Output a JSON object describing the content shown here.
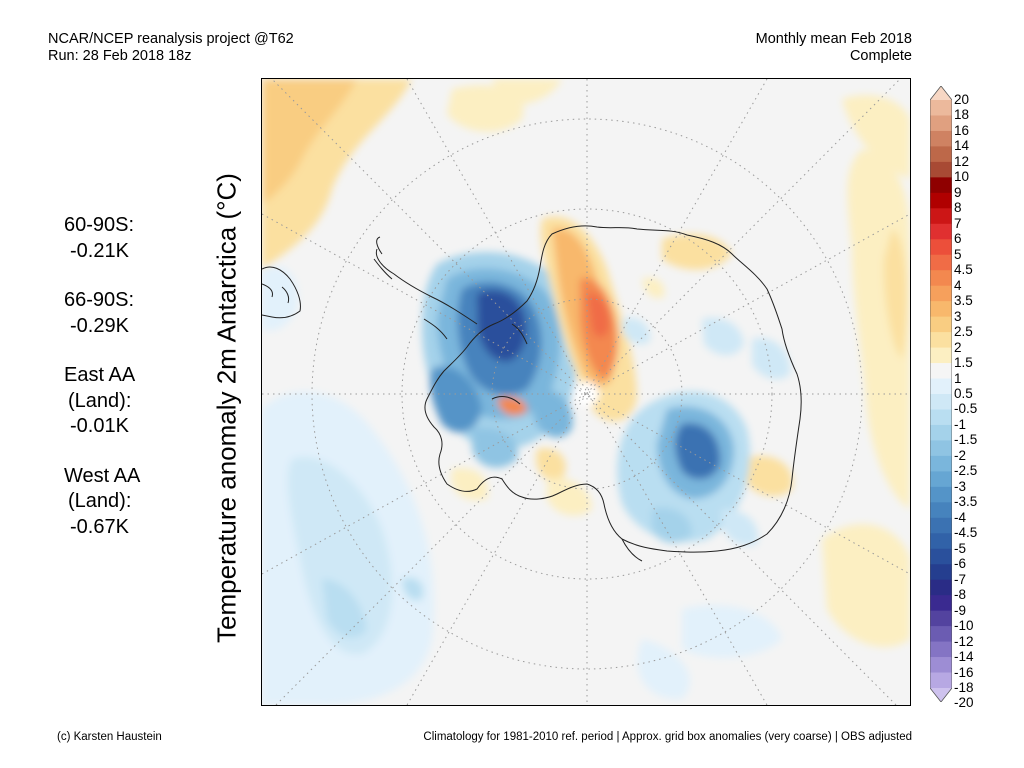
{
  "header": {
    "left_line1": "NCAR/NCEP reanalysis project @T62",
    "left_line2": "Run: 28 Feb 2018 18z",
    "right_line1": "Monthly mean Feb 2018",
    "right_line2": "Complete"
  },
  "vertical_title": "Temperature anomaly 2m Antarctica (°C)",
  "stats": [
    {
      "label": "60-90S:",
      "value": "-0.21K"
    },
    {
      "label": "66-90S:",
      "value": "-0.29K"
    },
    {
      "label": "East AA",
      "label2": "(Land):",
      "value": "-0.01K"
    },
    {
      "label": "West AA",
      "label2": "(Land):",
      "value": "-0.67K"
    }
  ],
  "colorbar": {
    "labels": [
      "20",
      "18",
      "16",
      "14",
      "12",
      "10",
      "9",
      "8",
      "7",
      "6",
      "5",
      "4.5",
      "4",
      "3.5",
      "3",
      "2.5",
      "2",
      "1.5",
      "1",
      "0.5",
      "-0.5",
      "-1",
      "-1.5",
      "-2",
      "-2.5",
      "-3",
      "-3.5",
      "-4",
      "-4.5",
      "-5",
      "-6",
      "-7",
      "-8",
      "-9",
      "-10",
      "-12",
      "-14",
      "-16",
      "-18",
      "-20"
    ],
    "colors": [
      "#f7d7c4",
      "#ecb99c",
      "#e0a080",
      "#cf8262",
      "#bd6849",
      "#a84a34",
      "#8f0000",
      "#b00000",
      "#cc1616",
      "#e03030",
      "#ec4f3a",
      "#f06c46",
      "#f3884f",
      "#f6a05c",
      "#f8b86c",
      "#f9cd82",
      "#fbe0a0",
      "#fcefc2",
      "#f5f5f5",
      "#e2f1fb",
      "#cfe8f6",
      "#b9def1",
      "#a4d2ea",
      "#8fc4e3",
      "#7ab6dc",
      "#66a6d3",
      "#5494c8",
      "#4683bd",
      "#3b72b2",
      "#3162a8",
      "#2a509c",
      "#253e8f",
      "#2a2c86",
      "#3a2a90",
      "#53439f",
      "#6b5cb2",
      "#8474c4",
      "#9d8dd4",
      "#b7a8e3",
      "#cec2ee"
    ]
  },
  "footer": {
    "left": "(c) Karsten Haustein",
    "right": "Climatology for 1981-2010 ref. period | Approx. grid box anomalies (very coarse) | OBS adjusted"
  }
}
